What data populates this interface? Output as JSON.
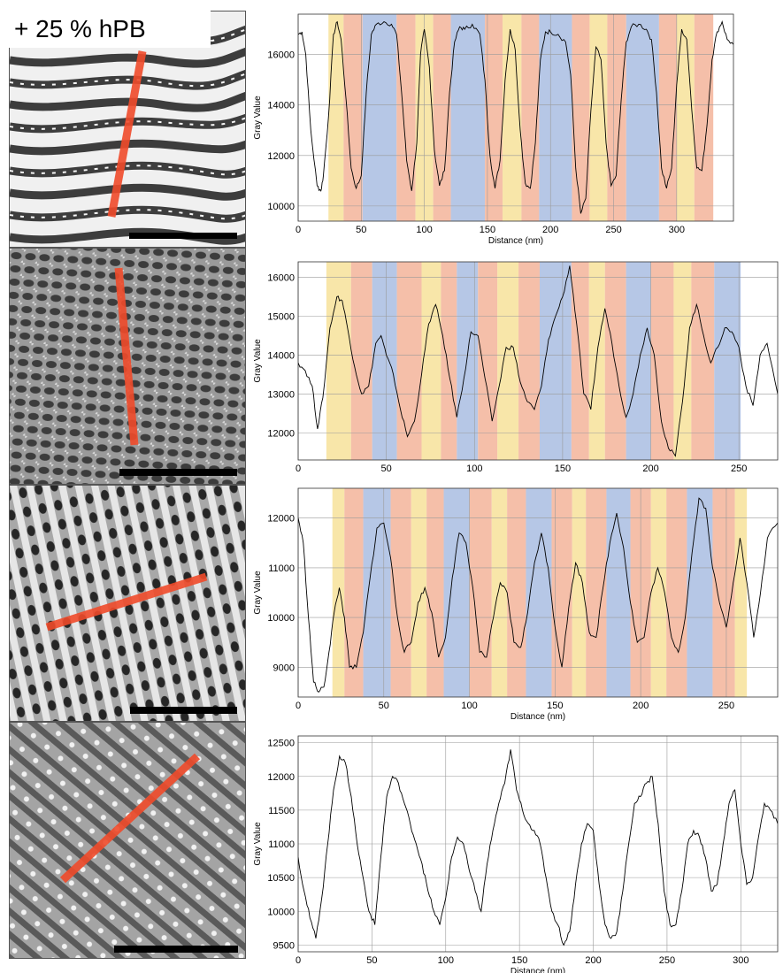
{
  "figure": {
    "label": "+ 25 % hPB",
    "colors": {
      "yellow": "#f7e29a",
      "salmon": "#f3b49a",
      "blue": "#a9bde2",
      "redline": "#f04a2a",
      "line": "#000000"
    }
  },
  "chart_data": [
    {
      "type": "line",
      "xlabel": "Distance (nm)",
      "ylabel": "Gray Value",
      "xlim": [
        0,
        345
      ],
      "ylim": [
        9400,
        17600
      ],
      "xticks": [
        0,
        50,
        100,
        150,
        200,
        250,
        300
      ],
      "yticks": [
        10000,
        12000,
        14000,
        16000
      ],
      "bands": [
        {
          "x0": 24,
          "x1": 36,
          "color": "yellow"
        },
        {
          "x0": 36,
          "x1": 51,
          "color": "salmon"
        },
        {
          "x0": 51,
          "x1": 78,
          "color": "blue"
        },
        {
          "x0": 78,
          "x1": 93,
          "color": "salmon"
        },
        {
          "x0": 93,
          "x1": 107,
          "color": "yellow"
        },
        {
          "x0": 107,
          "x1": 121,
          "color": "salmon"
        },
        {
          "x0": 121,
          "x1": 148,
          "color": "blue"
        },
        {
          "x0": 148,
          "x1": 162,
          "color": "salmon"
        },
        {
          "x0": 162,
          "x1": 177,
          "color": "yellow"
        },
        {
          "x0": 177,
          "x1": 191,
          "color": "salmon"
        },
        {
          "x0": 191,
          "x1": 217,
          "color": "blue"
        },
        {
          "x0": 217,
          "x1": 231,
          "color": "salmon"
        },
        {
          "x0": 231,
          "x1": 245,
          "color": "yellow"
        },
        {
          "x0": 245,
          "x1": 260,
          "color": "salmon"
        },
        {
          "x0": 260,
          "x1": 286,
          "color": "blue"
        },
        {
          "x0": 286,
          "x1": 300,
          "color": "salmon"
        },
        {
          "x0": 300,
          "x1": 314,
          "color": "yellow"
        },
        {
          "x0": 314,
          "x1": 329,
          "color": "salmon"
        }
      ],
      "x": [
        0,
        3,
        6,
        10,
        15,
        18,
        20,
        24,
        28,
        31,
        34,
        38,
        42,
        46,
        50,
        54,
        58,
        62,
        68,
        74,
        78,
        82,
        86,
        90,
        94,
        97,
        100,
        104,
        108,
        112,
        116,
        120,
        124,
        128,
        132,
        138,
        144,
        148,
        152,
        156,
        160,
        164,
        168,
        172,
        176,
        180,
        184,
        188,
        192,
        196,
        200,
        206,
        212,
        216,
        220,
        224,
        228,
        232,
        236,
        240,
        244,
        248,
        252,
        256,
        260,
        264,
        270,
        276,
        280,
        284,
        288,
        292,
        296,
        300,
        304,
        308,
        312,
        316,
        320,
        324,
        328,
        332,
        336,
        340,
        345
      ],
      "y": [
        16800,
        16900,
        16000,
        13000,
        10800,
        10600,
        11200,
        13500,
        16800,
        17300,
        16600,
        14200,
        11500,
        10700,
        11200,
        14500,
        16800,
        17200,
        17300,
        17200,
        16800,
        14500,
        11800,
        10600,
        12500,
        16000,
        17000,
        15500,
        12200,
        10800,
        11400,
        14500,
        16500,
        17100,
        17000,
        17200,
        16800,
        15000,
        12000,
        10700,
        11800,
        15000,
        17000,
        16200,
        13000,
        10900,
        10700,
        12500,
        15800,
        16900,
        16900,
        16800,
        16500,
        15200,
        11500,
        9700,
        10300,
        13800,
        16300,
        15800,
        12500,
        10800,
        11200,
        14200,
        16500,
        17100,
        17200,
        17000,
        16600,
        14500,
        11500,
        10700,
        11500,
        14800,
        17000,
        16600,
        13800,
        11500,
        11400,
        13200,
        15800,
        16900,
        17300,
        16600,
        16400
      ]
    },
    {
      "type": "line",
      "xlabel": "",
      "ylabel": "Gray Value",
      "xlim": [
        0,
        272
      ],
      "ylim": [
        11300,
        16400
      ],
      "xticks": [
        0,
        50,
        100,
        150,
        200,
        250
      ],
      "yticks": [
        12000,
        13000,
        14000,
        15000,
        16000
      ],
      "bands": [
        {
          "x0": 16,
          "x1": 30,
          "color": "yellow"
        },
        {
          "x0": 30,
          "x1": 42,
          "color": "salmon"
        },
        {
          "x0": 42,
          "x1": 56,
          "color": "blue"
        },
        {
          "x0": 56,
          "x1": 70,
          "color": "salmon"
        },
        {
          "x0": 70,
          "x1": 81,
          "color": "yellow"
        },
        {
          "x0": 81,
          "x1": 90,
          "color": "salmon"
        },
        {
          "x0": 90,
          "x1": 102,
          "color": "blue"
        },
        {
          "x0": 102,
          "x1": 113,
          "color": "salmon"
        },
        {
          "x0": 113,
          "x1": 125,
          "color": "yellow"
        },
        {
          "x0": 125,
          "x1": 137,
          "color": "salmon"
        },
        {
          "x0": 137,
          "x1": 155,
          "color": "blue"
        },
        {
          "x0": 155,
          "x1": 165,
          "color": "salmon"
        },
        {
          "x0": 165,
          "x1": 174,
          "color": "yellow"
        },
        {
          "x0": 174,
          "x1": 186,
          "color": "salmon"
        },
        {
          "x0": 186,
          "x1": 200,
          "color": "blue"
        },
        {
          "x0": 200,
          "x1": 213,
          "color": "salmon"
        },
        {
          "x0": 213,
          "x1": 223,
          "color": "yellow"
        },
        {
          "x0": 223,
          "x1": 236,
          "color": "salmon"
        },
        {
          "x0": 236,
          "x1": 251,
          "color": "blue"
        }
      ],
      "x": [
        0,
        4,
        8,
        11,
        14,
        18,
        22,
        25,
        28,
        32,
        36,
        40,
        44,
        47,
        50,
        54,
        58,
        62,
        66,
        70,
        74,
        78,
        82,
        86,
        90,
        94,
        98,
        102,
        106,
        110,
        114,
        118,
        122,
        126,
        130,
        134,
        138,
        142,
        146,
        150,
        154,
        158,
        162,
        166,
        170,
        174,
        178,
        182,
        186,
        190,
        194,
        198,
        202,
        206,
        210,
        214,
        218,
        222,
        226,
        230,
        234,
        238,
        242,
        246,
        250,
        254,
        258,
        262,
        266,
        272
      ],
      "y": [
        13800,
        13600,
        13200,
        12100,
        12900,
        14700,
        15500,
        15400,
        14700,
        13700,
        13000,
        13200,
        14300,
        14500,
        14000,
        13500,
        12600,
        11900,
        12300,
        13500,
        14800,
        15300,
        14500,
        13400,
        12400,
        13400,
        14600,
        14500,
        13400,
        12300,
        13200,
        14200,
        14200,
        13300,
        12800,
        12600,
        13200,
        14400,
        15000,
        15500,
        16300,
        14800,
        13000,
        12600,
        14200,
        15200,
        14300,
        13200,
        12400,
        13000,
        14000,
        14700,
        14000,
        12300,
        11600,
        11400,
        12800,
        14700,
        15300,
        14500,
        13800,
        14200,
        14700,
        14600,
        14200,
        13200,
        12700,
        14000,
        14300,
        13000
      ]
    },
    {
      "type": "line",
      "xlabel": "Distance (nm)",
      "ylabel": "Gray Value",
      "xlim": [
        0,
        280
      ],
      "ylim": [
        8400,
        12600
      ],
      "xticks": [
        0,
        50,
        100,
        150,
        200,
        250
      ],
      "yticks": [
        9000,
        10000,
        11000,
        12000
      ],
      "bands": [
        {
          "x0": 20,
          "x1": 27,
          "color": "yellow"
        },
        {
          "x0": 27,
          "x1": 38,
          "color": "salmon"
        },
        {
          "x0": 38,
          "x1": 54,
          "color": "blue"
        },
        {
          "x0": 54,
          "x1": 66,
          "color": "salmon"
        },
        {
          "x0": 66,
          "x1": 75,
          "color": "yellow"
        },
        {
          "x0": 75,
          "x1": 85,
          "color": "salmon"
        },
        {
          "x0": 85,
          "x1": 100,
          "color": "blue"
        },
        {
          "x0": 100,
          "x1": 113,
          "color": "salmon"
        },
        {
          "x0": 113,
          "x1": 122,
          "color": "yellow"
        },
        {
          "x0": 122,
          "x1": 133,
          "color": "salmon"
        },
        {
          "x0": 133,
          "x1": 148,
          "color": "blue"
        },
        {
          "x0": 148,
          "x1": 160,
          "color": "salmon"
        },
        {
          "x0": 160,
          "x1": 168,
          "color": "yellow"
        },
        {
          "x0": 168,
          "x1": 180,
          "color": "salmon"
        },
        {
          "x0": 180,
          "x1": 194,
          "color": "blue"
        },
        {
          "x0": 194,
          "x1": 206,
          "color": "salmon"
        },
        {
          "x0": 206,
          "x1": 215,
          "color": "yellow"
        },
        {
          "x0": 215,
          "x1": 227,
          "color": "salmon"
        },
        {
          "x0": 227,
          "x1": 242,
          "color": "blue"
        },
        {
          "x0": 242,
          "x1": 255,
          "color": "salmon"
        },
        {
          "x0": 255,
          "x1": 262,
          "color": "yellow"
        }
      ],
      "x": [
        0,
        3,
        6,
        9,
        12,
        15,
        18,
        21,
        24,
        27,
        30,
        34,
        38,
        42,
        46,
        50,
        54,
        58,
        62,
        66,
        70,
        74,
        78,
        82,
        86,
        90,
        94,
        98,
        102,
        106,
        110,
        114,
        118,
        122,
        126,
        130,
        134,
        138,
        142,
        146,
        150,
        154,
        158,
        162,
        166,
        170,
        174,
        178,
        182,
        186,
        190,
        194,
        198,
        202,
        206,
        210,
        214,
        218,
        222,
        226,
        230,
        234,
        238,
        242,
        246,
        250,
        254,
        258,
        262,
        266,
        270,
        274,
        280
      ],
      "y": [
        12000,
        11500,
        10000,
        8700,
        8500,
        8600,
        9300,
        10100,
        10600,
        10000,
        9000,
        9000,
        9700,
        10800,
        11800,
        11900,
        11200,
        10000,
        9300,
        9500,
        10300,
        10600,
        10100,
        9200,
        9600,
        10800,
        11700,
        11500,
        10600,
        9300,
        9200,
        10000,
        10700,
        10500,
        9500,
        9400,
        10100,
        11100,
        11700,
        11000,
        9800,
        9000,
        10200,
        11100,
        10700,
        9700,
        9600,
        10600,
        11500,
        12100,
        11400,
        10300,
        9500,
        9600,
        10500,
        11000,
        10500,
        9600,
        9300,
        10000,
        11300,
        12400,
        12200,
        11000,
        10300,
        9800,
        10700,
        11600,
        10700,
        9600,
        10500,
        11600,
        11900
      ]
    },
    {
      "type": "line",
      "xlabel": "Distance (nm)",
      "ylabel": "Gray Value",
      "xlim": [
        0,
        325
      ],
      "ylim": [
        9400,
        12600
      ],
      "xticks": [
        0,
        50,
        100,
        150,
        200,
        250,
        300
      ],
      "yticks": [
        9500,
        10000,
        10500,
        11000,
        11500,
        12000,
        12500
      ],
      "bands": [],
      "x": [
        0,
        4,
        8,
        12,
        16,
        20,
        24,
        28,
        32,
        36,
        40,
        44,
        48,
        52,
        56,
        60,
        64,
        68,
        72,
        76,
        80,
        84,
        88,
        92,
        96,
        100,
        104,
        108,
        112,
        116,
        120,
        124,
        128,
        132,
        136,
        140,
        144,
        148,
        152,
        156,
        160,
        164,
        168,
        172,
        176,
        180,
        184,
        188,
        192,
        196,
        200,
        204,
        208,
        212,
        216,
        220,
        224,
        228,
        232,
        236,
        240,
        244,
        248,
        252,
        256,
        260,
        264,
        268,
        272,
        276,
        280,
        284,
        288,
        292,
        296,
        300,
        304,
        308,
        312,
        316,
        320,
        325
      ],
      "y": [
        10800,
        10300,
        9900,
        9600,
        10200,
        11000,
        11800,
        12300,
        12200,
        11700,
        11000,
        10500,
        10000,
        9800,
        10800,
        11700,
        12000,
        11900,
        11600,
        11300,
        11000,
        10700,
        10300,
        10000,
        9800,
        10200,
        10800,
        11100,
        11000,
        10600,
        10300,
        10000,
        10700,
        11200,
        11600,
        11900,
        12400,
        11800,
        11500,
        11300,
        11200,
        11000,
        10500,
        10000,
        9800,
        9500,
        9700,
        10400,
        11000,
        11300,
        11200,
        10400,
        9800,
        9600,
        9700,
        10300,
        11000,
        11600,
        11700,
        11900,
        12000,
        11300,
        10300,
        9800,
        9800,
        10300,
        11000,
        11200,
        11100,
        10800,
        10300,
        10400,
        11000,
        11600,
        11800,
        11000,
        10400,
        10500,
        11100,
        11600,
        11500,
        11300
      ]
    }
  ]
}
